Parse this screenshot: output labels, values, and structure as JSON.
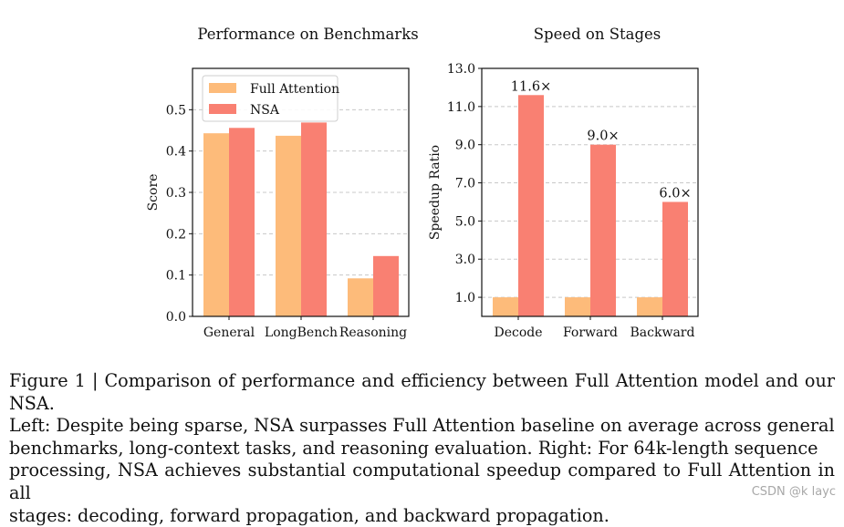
{
  "chart_data": [
    {
      "type": "bar",
      "title": "Performance on Benchmarks",
      "xlabel": "",
      "ylabel": "Score",
      "categories": [
        "General",
        "LongBench",
        "Reasoning"
      ],
      "series": [
        {
          "name": "Full Attention",
          "values": [
            0.443,
            0.437,
            0.092
          ],
          "color": "#FDBB7A"
        },
        {
          "name": "NSA",
          "values": [
            0.456,
            0.469,
            0.146
          ],
          "color": "#F98072"
        }
      ],
      "ylim": [
        0,
        0.6
      ],
      "yticks": [
        "0.0",
        "0.1",
        "0.2",
        "0.3",
        "0.4",
        "0.5"
      ],
      "legend": "top-left",
      "grid": "y-dashed"
    },
    {
      "type": "bar",
      "title": "Speed on Stages",
      "xlabel": "",
      "ylabel": "Speedup Ratio",
      "categories": [
        "Decode",
        "Forward",
        "Backward"
      ],
      "series": [
        {
          "name": "Full Attention",
          "values": [
            1.0,
            1.0,
            1.0
          ],
          "color": "#FDBB7A"
        },
        {
          "name": "NSA",
          "values": [
            11.6,
            9.0,
            6.0
          ],
          "color": "#F98072"
        }
      ],
      "data_labels": [
        "11.6×",
        "9.0×",
        "6.0×"
      ],
      "ylim": [
        0,
        13.0
      ],
      "yticks": [
        "1.0",
        "3.0",
        "5.0",
        "7.0",
        "9.0",
        "11.0",
        "13.0"
      ],
      "grid": "y-dashed"
    }
  ],
  "caption": {
    "lines": [
      "Figure 1 | Comparison of performance and efficiency between Full Attention model and our NSA.",
      "Left: Despite being sparse, NSA surpasses Full Attention baseline on average across general",
      "benchmarks, long-context tasks, and reasoning evaluation. Right: For 64k-length sequence",
      "processing, NSA achieves substantial computational speedup compared to Full Attention in all",
      "stages: decoding, forward propagation, and backward propagation."
    ]
  },
  "watermark": "CSDN @k layc"
}
